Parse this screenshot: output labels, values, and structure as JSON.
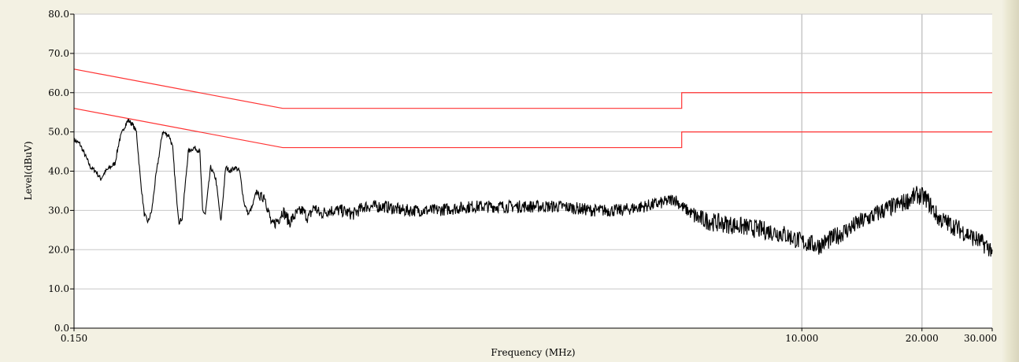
{
  "chart_data": {
    "type": "line",
    "title": "",
    "xlabel": "Frequency (MHz)",
    "ylabel": "Level(dBuV)",
    "x_scale": "log",
    "xlim": [
      0.15,
      30
    ],
    "ylim": [
      0,
      80
    ],
    "y_ticks": [
      "0.0",
      "10.0",
      "20.0",
      "30.0",
      "40.0",
      "50.0",
      "60.0",
      "70.0",
      "80.0"
    ],
    "x_ticks": [
      {
        "value": 0.15,
        "label": "0.150"
      },
      {
        "value": 10,
        "label": "10.000"
      },
      {
        "value": 20,
        "label": "20.000"
      },
      {
        "value": 30,
        "label": "30.000"
      }
    ],
    "x_gridlines": [
      10,
      20
    ],
    "grid": true,
    "colors": {
      "measurement": "#000000",
      "limit": "#ff3333",
      "grid": "#c8c8c8",
      "plot_bg": "#ffffff"
    },
    "limit_lines": [
      {
        "x": [
          0.15,
          0.5,
          0.5,
          5,
          5,
          30
        ],
        "y": [
          66,
          56,
          56,
          56,
          60,
          60
        ]
      },
      {
        "x": [
          0.15,
          0.5,
          0.5,
          5,
          5,
          30
        ],
        "y": [
          56,
          46,
          46,
          46,
          50,
          50
        ]
      }
    ],
    "series": [
      {
        "x": [
          0.15,
          0.155,
          0.16,
          0.165,
          0.17,
          0.175,
          0.18,
          0.185,
          0.19,
          0.195,
          0.2,
          0.205,
          0.21,
          0.215,
          0.22,
          0.225,
          0.23,
          0.235,
          0.24,
          0.245,
          0.25,
          0.26,
          0.265,
          0.27,
          0.275,
          0.28,
          0.29,
          0.3,
          0.31,
          0.315,
          0.32,
          0.33,
          0.34,
          0.35,
          0.36,
          0.37,
          0.38,
          0.39,
          0.4,
          0.41,
          0.42,
          0.43,
          0.44,
          0.45,
          0.47,
          0.49,
          0.5,
          0.52,
          0.54,
          0.56,
          0.58,
          0.6,
          0.62,
          0.65,
          0.7,
          0.75,
          0.8,
          0.9,
          1.0,
          1.2,
          1.5,
          2.0,
          2.5,
          3.0,
          3.5,
          4.0,
          4.5,
          4.8,
          5.0,
          5.5,
          6.0,
          7.0,
          8.0,
          9.0,
          10.0,
          11.0,
          12.0,
          14.0,
          16.0,
          18.0,
          19.5,
          20.5,
          22.0,
          24.0,
          26.0,
          28.0,
          30.0
        ],
        "y": [
          48,
          47,
          44,
          41,
          40,
          38,
          40,
          41,
          42,
          48,
          51,
          53,
          52,
          50,
          38,
          29,
          27,
          30,
          38,
          44,
          50,
          49,
          46,
          35,
          27,
          28,
          45,
          46,
          45,
          30,
          29,
          41,
          38,
          27,
          41,
          40,
          41,
          40,
          32,
          29,
          31,
          35,
          33,
          34,
          26,
          28,
          30,
          27,
          29,
          30,
          28,
          31,
          29,
          30,
          30,
          29,
          31,
          31,
          30,
          30,
          31,
          31,
          31,
          30,
          30,
          31,
          32,
          33,
          31,
          28,
          27,
          26,
          25,
          24,
          22,
          21,
          23,
          27,
          30,
          32,
          34,
          33,
          28,
          26,
          24,
          22,
          20
        ]
      }
    ]
  }
}
